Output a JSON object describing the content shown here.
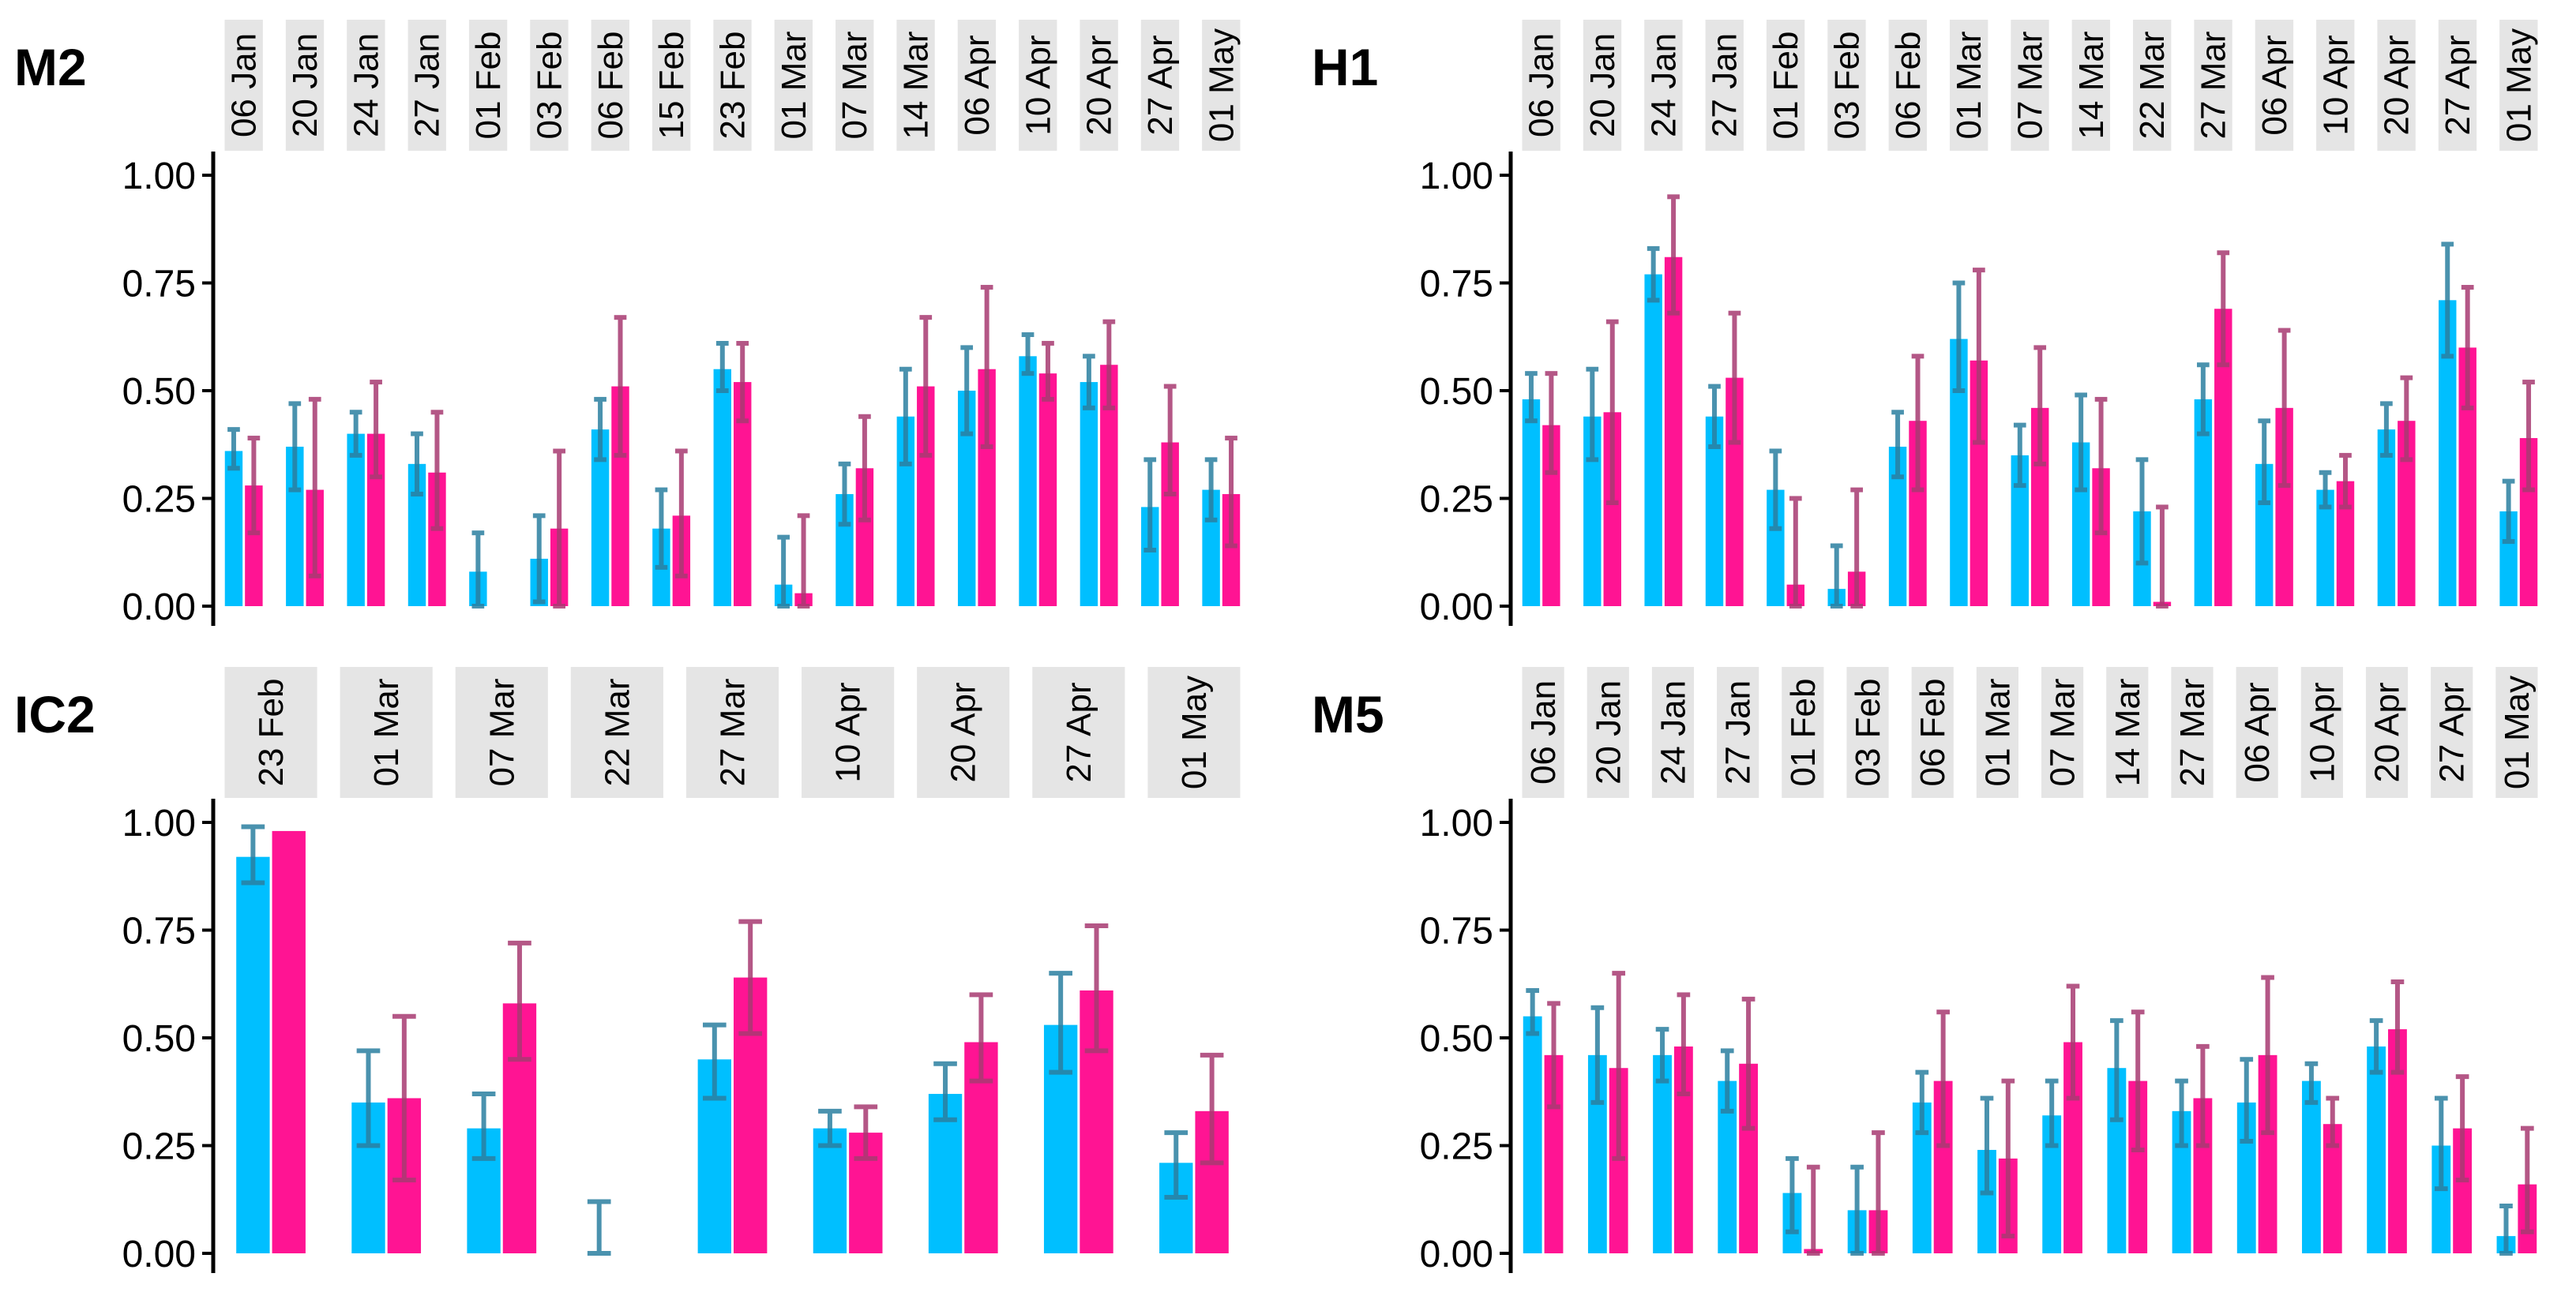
{
  "colors": {
    "series_a": "#00BFFF",
    "series_b": "#FF1493",
    "err_a": "#2B7FA0",
    "err_b": "#A83A72",
    "strip": "#E5E5E5"
  },
  "chart_data": [
    {
      "type": "bar",
      "title": "M2",
      "ylim": [
        0,
        1
      ],
      "yticks": [
        "0.00",
        "0.25",
        "0.50",
        "0.75",
        "1.00"
      ],
      "categories": [
        "06 Jan",
        "20 Jan",
        "24 Jan",
        "27 Jan",
        "01 Feb",
        "03 Feb",
        "06 Feb",
        "15 Feb",
        "23 Feb",
        "01 Mar",
        "07 Mar",
        "14 Mar",
        "06 Apr",
        "10 Apr",
        "20 Apr",
        "27 Apr",
        "01 May"
      ],
      "series": [
        {
          "name": "blue",
          "values": [
            0.36,
            0.37,
            0.4,
            0.33,
            0.08,
            0.11,
            0.41,
            0.18,
            0.55,
            0.05,
            0.26,
            0.44,
            0.5,
            0.58,
            0.52,
            0.23,
            0.27
          ],
          "lower": [
            0.32,
            0.27,
            0.35,
            0.26,
            0.0,
            0.01,
            0.34,
            0.09,
            0.5,
            0.0,
            0.19,
            0.33,
            0.4,
            0.54,
            0.46,
            0.13,
            0.2
          ],
          "upper": [
            0.41,
            0.47,
            0.45,
            0.4,
            0.17,
            0.21,
            0.48,
            0.27,
            0.61,
            0.16,
            0.33,
            0.55,
            0.6,
            0.63,
            0.58,
            0.34,
            0.34
          ]
        },
        {
          "name": "pink",
          "values": [
            0.28,
            0.27,
            0.4,
            0.31,
            null,
            0.18,
            0.51,
            0.21,
            0.52,
            0.03,
            0.32,
            0.51,
            0.55,
            0.54,
            0.56,
            0.38,
            0.26
          ],
          "lower": [
            0.17,
            0.07,
            0.3,
            0.18,
            null,
            0.0,
            0.35,
            0.07,
            0.43,
            0.0,
            0.2,
            0.35,
            0.37,
            0.48,
            0.46,
            0.26,
            0.14
          ],
          "upper": [
            0.39,
            0.48,
            0.52,
            0.45,
            null,
            0.36,
            0.67,
            0.36,
            0.61,
            0.21,
            0.44,
            0.67,
            0.74,
            0.61,
            0.66,
            0.51,
            0.39
          ]
        }
      ]
    },
    {
      "type": "bar",
      "title": "H1",
      "ylim": [
        0,
        1
      ],
      "yticks": [
        "0.00",
        "0.25",
        "0.50",
        "0.75",
        "1.00"
      ],
      "categories": [
        "06 Jan",
        "20 Jan",
        "24 Jan",
        "27 Jan",
        "01 Feb",
        "03 Feb",
        "06 Feb",
        "01 Mar",
        "07 Mar",
        "14 Mar",
        "22 Mar",
        "27 Mar",
        "06 Apr",
        "10 Apr",
        "20 Apr",
        "27 Apr",
        "01 May"
      ],
      "series": [
        {
          "name": "blue",
          "values": [
            0.48,
            0.44,
            0.77,
            0.44,
            0.27,
            0.04,
            0.37,
            0.62,
            0.35,
            0.38,
            0.22,
            0.48,
            0.33,
            0.27,
            0.41,
            0.71,
            0.22
          ],
          "lower": [
            0.43,
            0.34,
            0.71,
            0.37,
            0.18,
            0.0,
            0.3,
            0.5,
            0.28,
            0.27,
            0.1,
            0.4,
            0.24,
            0.23,
            0.35,
            0.58,
            0.15
          ],
          "upper": [
            0.54,
            0.55,
            0.83,
            0.51,
            0.36,
            0.14,
            0.45,
            0.75,
            0.42,
            0.49,
            0.34,
            0.56,
            0.43,
            0.31,
            0.47,
            0.84,
            0.29
          ]
        },
        {
          "name": "pink",
          "values": [
            0.42,
            0.45,
            0.81,
            0.53,
            0.05,
            0.08,
            0.43,
            0.57,
            0.46,
            0.32,
            0.01,
            0.69,
            0.46,
            0.29,
            0.43,
            0.6,
            0.39
          ],
          "lower": [
            0.31,
            0.24,
            0.68,
            0.38,
            0.0,
            0.0,
            0.27,
            0.38,
            0.33,
            0.17,
            0.0,
            0.56,
            0.28,
            0.23,
            0.34,
            0.46,
            0.27
          ],
          "upper": [
            0.54,
            0.66,
            0.95,
            0.68,
            0.25,
            0.27,
            0.58,
            0.78,
            0.6,
            0.48,
            0.23,
            0.82,
            0.64,
            0.35,
            0.53,
            0.74,
            0.52
          ]
        }
      ]
    },
    {
      "type": "bar",
      "title": "IC2",
      "ylim": [
        0,
        1
      ],
      "yticks": [
        "0.00",
        "0.25",
        "0.50",
        "0.75",
        "1.00"
      ],
      "categories": [
        "23 Feb",
        "01 Mar",
        "07 Mar",
        "22 Mar",
        "27 Mar",
        "10 Apr",
        "20 Apr",
        "27 Apr",
        "01 May"
      ],
      "series": [
        {
          "name": "blue",
          "values": [
            0.92,
            0.35,
            0.29,
            0.0,
            0.45,
            0.29,
            0.37,
            0.53,
            0.21
          ],
          "lower": [
            0.86,
            0.25,
            0.22,
            0.0,
            0.36,
            0.25,
            0.31,
            0.42,
            0.13
          ],
          "upper": [
            0.99,
            0.47,
            0.37,
            0.12,
            0.53,
            0.33,
            0.44,
            0.65,
            0.28
          ]
        },
        {
          "name": "pink",
          "values": [
            0.98,
            0.36,
            0.58,
            null,
            0.64,
            0.28,
            0.49,
            0.61,
            0.33
          ],
          "lower": [
            null,
            0.17,
            0.45,
            null,
            0.51,
            0.22,
            0.4,
            0.47,
            0.21
          ],
          "upper": [
            null,
            0.55,
            0.72,
            null,
            0.77,
            0.34,
            0.6,
            0.76,
            0.46
          ]
        }
      ]
    },
    {
      "type": "bar",
      "title": "M5",
      "ylim": [
        0,
        1
      ],
      "yticks": [
        "0.00",
        "0.25",
        "0.50",
        "0.75",
        "1.00"
      ],
      "categories": [
        "06 Jan",
        "20 Jan",
        "24 Jan",
        "27 Jan",
        "01 Feb",
        "03 Feb",
        "06 Feb",
        "01 Mar",
        "07 Mar",
        "14 Mar",
        "27 Mar",
        "06 Apr",
        "10 Apr",
        "20 Apr",
        "27 Apr",
        "01 May"
      ],
      "series": [
        {
          "name": "blue",
          "values": [
            0.55,
            0.46,
            0.46,
            0.4,
            0.14,
            0.1,
            0.35,
            0.24,
            0.32,
            0.43,
            0.33,
            0.35,
            0.4,
            0.48,
            0.25,
            0.04
          ],
          "lower": [
            0.51,
            0.35,
            0.4,
            0.33,
            0.05,
            0.0,
            0.28,
            0.14,
            0.25,
            0.31,
            0.25,
            0.26,
            0.35,
            0.42,
            0.15,
            0.0
          ],
          "upper": [
            0.61,
            0.57,
            0.52,
            0.47,
            0.22,
            0.2,
            0.42,
            0.36,
            0.4,
            0.54,
            0.4,
            0.45,
            0.44,
            0.54,
            0.36,
            0.11
          ]
        },
        {
          "name": "pink",
          "values": [
            0.46,
            0.43,
            0.48,
            0.44,
            0.01,
            0.1,
            0.4,
            0.22,
            0.49,
            0.4,
            0.36,
            0.46,
            0.3,
            0.52,
            0.29,
            0.16
          ],
          "lower": [
            0.34,
            0.22,
            0.37,
            0.29,
            0.0,
            0.0,
            0.25,
            0.04,
            0.36,
            0.24,
            0.25,
            0.28,
            0.25,
            0.42,
            0.17,
            0.05
          ],
          "upper": [
            0.58,
            0.65,
            0.6,
            0.59,
            0.2,
            0.28,
            0.56,
            0.4,
            0.62,
            0.56,
            0.48,
            0.64,
            0.36,
            0.63,
            0.41,
            0.29
          ]
        }
      ]
    }
  ]
}
